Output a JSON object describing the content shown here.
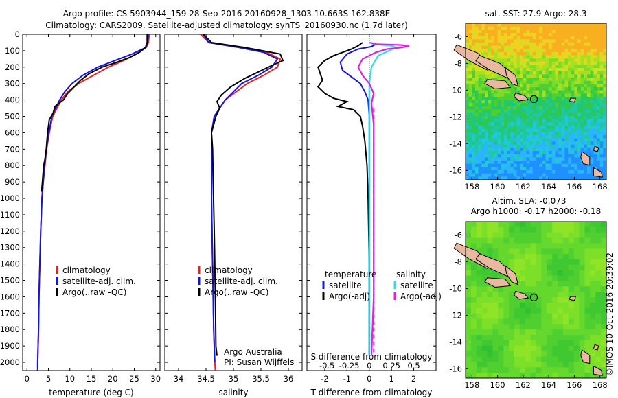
{
  "header": {
    "line1": "Argo profile: CS 5903944_159 28-Sep-2016 20160928_1303 10.663S 162.838E",
    "line2": "Climatology: CARS2009. Satellite-adjusted climatology: synTS_20160930.nc (1.7d later)"
  },
  "side_label": "©IMOS 10-Oct-2016 20:39:02",
  "colors": {
    "climatology": "#e8221f",
    "satellite": "#1414e0",
    "argo": "#000000",
    "sal_satellite": "#33dde6",
    "sal_argo": "#e020e0",
    "land": "#e8b8a0"
  },
  "chart_data": [
    {
      "type": "line",
      "name": "temperature",
      "xlabel": "temperature (deg C)",
      "xlim": [
        -1,
        31
      ],
      "ylim": [
        2050,
        0
      ],
      "xticks": [
        0,
        5,
        10,
        15,
        20,
        25,
        30
      ],
      "yticks": [
        0,
        100,
        200,
        300,
        400,
        500,
        600,
        700,
        800,
        900,
        1000,
        1100,
        1200,
        1300,
        1400,
        1500,
        1600,
        1700,
        1800,
        1900,
        2000
      ],
      "legend": [
        "climatology",
        "satellite-adj. clim.",
        "Argo(..raw -QC)"
      ],
      "legend_position": "lower-center",
      "series": [
        {
          "name": "climatology",
          "x": [
            28.5,
            28.3,
            27.8,
            25.5,
            22.5,
            19,
            15.5,
            12,
            9.5,
            8,
            7,
            6,
            5.2,
            4.6,
            4.2,
            3.8,
            3.5,
            3.2,
            3,
            2.8,
            2.7,
            2.6,
            2.5,
            2.5
          ],
          "y": [
            0,
            50,
            80,
            120,
            160,
            200,
            250,
            300,
            350,
            400,
            450,
            500,
            600,
            700,
            800,
            900,
            1000,
            1200,
            1400,
            1600,
            1800,
            1900,
            2000,
            2050
          ]
        },
        {
          "name": "satellite-adj. clim.",
          "x": [
            28.3,
            28.1,
            27.7,
            24.5,
            20.5,
            16.5,
            13,
            10.5,
            8.8,
            7.6,
            6.7,
            5.8,
            5.1,
            4.5,
            4.1,
            3.8,
            3.5,
            3.2,
            3,
            2.8,
            2.7,
            2.6,
            2.5,
            2.5
          ],
          "y": [
            0,
            50,
            80,
            120,
            160,
            200,
            250,
            300,
            350,
            400,
            450,
            500,
            600,
            700,
            800,
            900,
            1000,
            1200,
            1400,
            1600,
            1800,
            1900,
            2000,
            2050
          ]
        },
        {
          "name": "Argo(..raw -QC)",
          "x": [
            28,
            28,
            27.6,
            26.2,
            24,
            21,
            17.5,
            14.5,
            12.5,
            11,
            9.5,
            8.5,
            7.5,
            6.5,
            6.1,
            5.2,
            4.8,
            4.5,
            4.2,
            3.9,
            3.6,
            3.4
          ],
          "y": [
            0,
            50,
            80,
            110,
            140,
            170,
            200,
            240,
            280,
            320,
            360,
            400,
            420,
            440,
            480,
            520,
            600,
            700,
            760,
            800,
            900,
            960
          ]
        }
      ]
    },
    {
      "type": "line",
      "name": "salinity",
      "xlabel": "salinity",
      "xlim": [
        33.75,
        36.25
      ],
      "ylim": [
        2050,
        0
      ],
      "xticks": [
        34,
        34.5,
        35,
        35.5,
        36
      ],
      "legend": [
        "climatology",
        "satellite-adj. clim.",
        "Argo(..raw -QC)"
      ],
      "legend_position": "lower-center",
      "annotation": [
        "Argo Australia",
        "PI: Susan Wijffels"
      ],
      "series": [
        {
          "name": "climatology",
          "x": [
            34.4,
            34.55,
            35.1,
            35.6,
            35.85,
            35.8,
            35.55,
            35.25,
            35.05,
            34.85,
            34.75,
            34.65,
            34.6,
            34.6,
            34.6,
            34.6,
            34.62,
            34.64,
            34.66,
            34.67
          ],
          "y": [
            0,
            50,
            80,
            110,
            150,
            200,
            250,
            300,
            350,
            400,
            450,
            500,
            600,
            700,
            800,
            1000,
            1400,
            1800,
            2000,
            2050
          ]
        },
        {
          "name": "satellite-adj. clim.",
          "x": [
            34.45,
            34.55,
            35.1,
            35.55,
            35.8,
            35.7,
            35.45,
            35.15,
            35,
            34.85,
            34.75,
            34.65,
            34.6,
            34.6,
            34.6,
            34.6,
            34.62,
            34.64,
            34.66
          ],
          "y": [
            0,
            50,
            80,
            110,
            150,
            200,
            250,
            300,
            350,
            400,
            450,
            500,
            600,
            700,
            800,
            1000,
            1400,
            1800,
            2000
          ]
        },
        {
          "name": "Argo(..raw -QC)",
          "x": [
            34.45,
            34.6,
            35.2,
            35.85,
            35.9,
            35.7,
            35.45,
            35.2,
            34.95,
            34.78,
            34.7,
            34.75,
            34.68,
            34.6,
            34.62,
            34.63,
            34.65,
            34.67,
            34.68,
            34.7
          ],
          "y": [
            0,
            50,
            80,
            120,
            160,
            190,
            230,
            270,
            320,
            370,
            410,
            450,
            500,
            600,
            700,
            900,
            1200,
            1600,
            1900,
            1960
          ]
        }
      ]
    },
    {
      "type": "line",
      "name": "differences",
      "xlabel": "T difference from climatology",
      "xlabel2": "S difference from climatology",
      "xlim": [
        -2.8,
        3
      ],
      "ylim": [
        2050,
        0
      ],
      "xticks": [
        -2,
        -1,
        0,
        1,
        2
      ],
      "xticks2": [
        -0.5,
        -0.25,
        0,
        0.25,
        0.5
      ],
      "legend": [
        "temperature",
        "satellite",
        "Argo(-adj)",
        "salinity",
        "satellite",
        "Argo(-adj)"
      ],
      "legend_position": "lower-center",
      "series": [
        {
          "name": "temperature satellite",
          "x": [
            0,
            0.3,
            0.1,
            -0.5,
            -1,
            -1.3,
            -1.2,
            -0.8,
            -0.4,
            -0.2,
            -0.05,
            0,
            0,
            0,
            0,
            0,
            0
          ],
          "y": [
            50,
            60,
            75,
            90,
            120,
            170,
            220,
            260,
            300,
            350,
            400,
            500,
            700,
            1000,
            1400,
            1800,
            1960
          ]
        },
        {
          "name": "temperature Argo(-adj)",
          "x": [
            -0.3,
            -0.5,
            -0.8,
            -1.2,
            -1.6,
            -2,
            -2.3,
            -2.2,
            -2.1,
            -2.3,
            -2,
            -1.6,
            -1,
            -1.4,
            -0.7,
            -0.4,
            -0.3,
            -0.2,
            -0.1,
            -0.05,
            0,
            0,
            0
          ],
          "y": [
            50,
            70,
            90,
            110,
            130,
            160,
            200,
            240,
            280,
            320,
            360,
            390,
            410,
            440,
            460,
            500,
            560,
            650,
            800,
            1000,
            1400,
            1800,
            1960
          ]
        },
        {
          "name": "salinity satellite",
          "x": [
            0,
            0.2,
            1,
            1.2,
            0.9,
            0.4,
            0.1,
            0,
            0,
            0,
            0,
            0
          ],
          "y": [
            50,
            60,
            70,
            80,
            100,
            130,
            200,
            300,
            500,
            1000,
            1500,
            1960
          ]
        },
        {
          "name": "salinity Argo(-adj)",
          "x": [
            0.05,
            0.3,
            1.4,
            1.8,
            1.5,
            0.8,
            0.3,
            -0.3,
            -0.5,
            -0.3,
            0,
            0.2,
            0.1,
            0.2,
            0.2,
            0.2,
            0.2,
            0.2,
            0.1
          ],
          "y": [
            50,
            60,
            65,
            70,
            80,
            90,
            110,
            150,
            200,
            250,
            300,
            360,
            420,
            550,
            700,
            900,
            1200,
            1600,
            1960
          ]
        }
      ]
    }
  ],
  "maps": [
    {
      "title": "sat. SST: 27.9 Argo: 28.3",
      "xticks": [
        158,
        160,
        162,
        164,
        166,
        168
      ],
      "yticks": [
        -6,
        -8,
        -10,
        -12,
        -14,
        -16
      ],
      "xlim": [
        157.5,
        168.5
      ],
      "ylim": [
        -16.7,
        -5.0
      ],
      "marker": {
        "lon": 162.838,
        "lat": -10.663
      }
    },
    {
      "title": "Altim. SLA: -0.073",
      "subtitle": "Argo h1000: -0.17 h2000: -0.18",
      "xticks": [
        158,
        160,
        162,
        164,
        166,
        168
      ],
      "yticks": [
        -6,
        -8,
        -10,
        -12,
        -14,
        -16
      ],
      "xlim": [
        157.5,
        168.5
      ],
      "ylim": [
        -16.7,
        -5.0
      ],
      "marker": {
        "lon": 162.838,
        "lat": -10.663
      }
    }
  ]
}
